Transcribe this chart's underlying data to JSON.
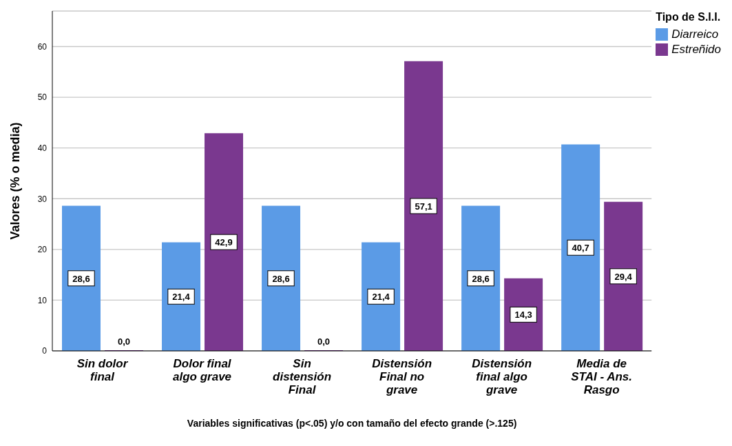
{
  "chart_data": {
    "type": "bar",
    "xlabel": "Variables significativas (p<.05) y/o con tamaño del efecto grande (>.125)",
    "ylabel": "Valores (% o media)",
    "legend_title": "Tipo de S.I.I.",
    "categories": [
      "Sin dolor final",
      "Dolor final algo grave",
      "Sin distensión Final",
      "Distensión Final no grave",
      "Distensión final algo grave",
      "Media de STAI - Ans. Rasgo"
    ],
    "series": [
      {
        "name": "Diarreico",
        "color": "#5b9be6",
        "values": [
          28.6,
          21.4,
          28.6,
          21.4,
          28.6,
          40.7
        ],
        "value_labels": [
          "28,6",
          "21,4",
          "28,6",
          "21,4",
          "28,6",
          "40,7"
        ]
      },
      {
        "name": "Estreñido",
        "color": "#7a388f",
        "values": [
          0,
          42.9,
          0,
          57.1,
          14.3,
          29.4
        ],
        "value_labels": [
          "0,0",
          "42,9",
          "0,0",
          "57,1",
          "14,3",
          "29,4"
        ]
      }
    ],
    "ylim": [
      0,
      67
    ],
    "yticks": [
      0,
      10,
      20,
      30,
      40,
      50,
      60
    ],
    "grid": "y",
    "legend": "top right"
  }
}
